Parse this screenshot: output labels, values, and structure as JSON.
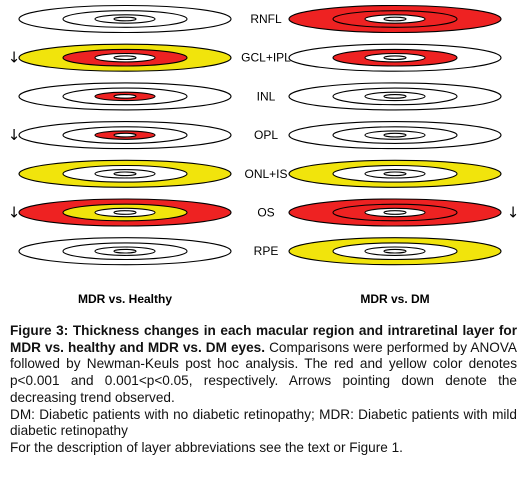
{
  "figure": {
    "colors": {
      "significant_p001": "#ee2222",
      "significant_p005": "#f1e40c",
      "not_significant": "#ffffff",
      "outline": "#000000"
    },
    "layers": [
      {
        "label": "RNFL",
        "left": {
          "outer": "white",
          "inner": "white",
          "center": "white",
          "arrow": ""
        },
        "right": {
          "outer": "red",
          "inner": "red",
          "center": "white",
          "arrow": ""
        }
      },
      {
        "label": "GCL+IPL",
        "left": {
          "outer": "yellow",
          "inner": "red",
          "center": "white",
          "arrow": "↓"
        },
        "right": {
          "outer": "white",
          "inner": "red",
          "center": "white",
          "arrow": ""
        }
      },
      {
        "label": "INL",
        "left": {
          "outer": "white",
          "inner": "white",
          "center": "red",
          "arrow": ""
        },
        "right": {
          "outer": "white",
          "inner": "white",
          "center": "white",
          "arrow": ""
        }
      },
      {
        "label": "OPL",
        "left": {
          "outer": "white",
          "inner": "white",
          "center": "red",
          "arrow": "↓"
        },
        "right": {
          "outer": "white",
          "inner": "white",
          "center": "white",
          "arrow": ""
        }
      },
      {
        "label": "ONL+IS",
        "left": {
          "outer": "yellow",
          "inner": "white",
          "center": "white",
          "arrow": ""
        },
        "right": {
          "outer": "yellow",
          "inner": "white",
          "center": "white",
          "arrow": ""
        }
      },
      {
        "label": "OS",
        "left": {
          "outer": "red",
          "inner": "yellow",
          "center": "white",
          "arrow": "↓"
        },
        "right": {
          "outer": "red",
          "inner": "red",
          "center": "white",
          "arrow": "↓"
        }
      },
      {
        "label": "RPE",
        "left": {
          "outer": "white",
          "inner": "white",
          "center": "white",
          "arrow": ""
        },
        "right": {
          "outer": "yellow",
          "inner": "white",
          "center": "white",
          "arrow": ""
        }
      }
    ],
    "left_column_label": "MDR vs. Healthy",
    "right_column_label": "MDR vs. DM"
  },
  "caption": {
    "title": "Figure 3: Thickness changes in each macular region and intraretinal layer for MDR vs. healthy and MDR vs. DM eyes.",
    "body": " Comparisons were performed by ANOVA followed by Newman-Keuls post hoc analysis. The red and yellow color denotes p<0.001 and 0.001<p<0.05, respectively. Arrows pointing down denote the decreasing trend observed.",
    "abbrev": "DM: Diabetic patients with no diabetic retinopathy; MDR: Diabetic patients with mild diabetic retinopathy",
    "reference": "For the description of layer abbreviations see the text or Figure 1."
  }
}
